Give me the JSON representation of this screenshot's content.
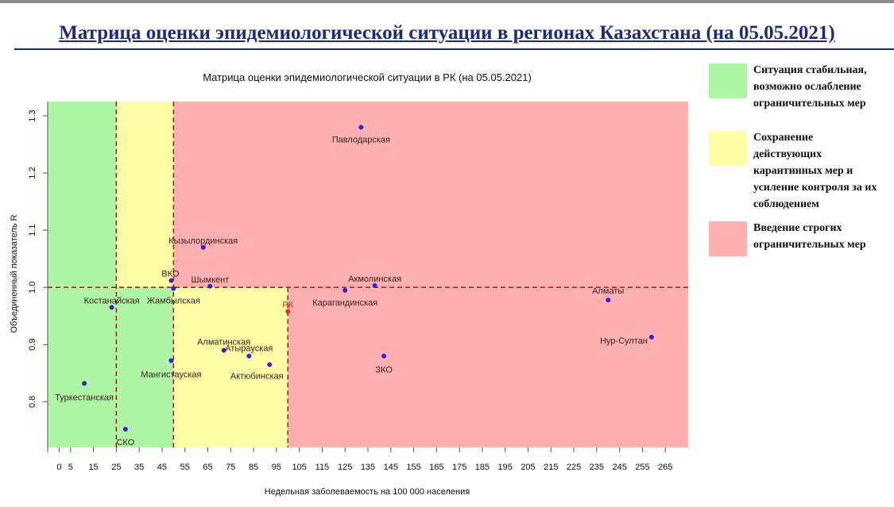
{
  "slide": {
    "title": "Матрица оценки эпидемиологической ситуации в регионах Казахстана (на 05.05.2021)"
  },
  "legend": {
    "items": [
      {
        "color": "#aef5a6",
        "text": "Ситуация стабильная,\nвозможно ослабление\nограничительных мер"
      },
      {
        "color": "#ffffa8",
        "text": "Сохранение\nдействующих\nкарантинных мер и\nусиление контроля за их\nсоблюдением"
      },
      {
        "color": "#ffb0b0",
        "text": "Введение строгих\nограничительных мер"
      }
    ]
  },
  "chart_data": {
    "type": "scatter",
    "title": "Матрица оценки эпидемиологической ситуации в РК (на 05.05.2021)",
    "xlabel": "Недельная заболеваемость на 100 000 населения",
    "ylabel": "Объединенный показатель R",
    "xlim": [
      -5,
      275
    ],
    "ylim": [
      0.72,
      1.325
    ],
    "x_ticks": [
      0,
      5,
      15,
      25,
      35,
      45,
      55,
      65,
      75,
      85,
      95,
      105,
      115,
      125,
      135,
      145,
      155,
      165,
      175,
      185,
      195,
      205,
      215,
      225,
      235,
      245,
      255,
      265
    ],
    "y_ticks": [
      0.8,
      0.9,
      1.0,
      1.1,
      1.2,
      1.3
    ],
    "zones": [
      {
        "x": [
          -5,
          50
        ],
        "y": [
          0.72,
          1.0
        ],
        "color": "#aef5a6"
      },
      {
        "x": [
          -5,
          25
        ],
        "y": [
          1.0,
          1.325
        ],
        "color": "#aef5a6"
      },
      {
        "x": [
          25,
          50
        ],
        "y": [
          1.0,
          1.325
        ],
        "color": "#ffffa8"
      },
      {
        "x": [
          50,
          100
        ],
        "y": [
          0.72,
          1.0
        ],
        "color": "#ffffa8"
      },
      {
        "x": [
          50,
          275
        ],
        "y": [
          1.0,
          1.325
        ],
        "color": "#ffb0b0"
      },
      {
        "x": [
          100,
          275
        ],
        "y": [
          0.72,
          1.0
        ],
        "color": "#ffb0b0"
      }
    ],
    "reference_lines": {
      "vertical": [
        25,
        50,
        100
      ],
      "horizontal": [
        1.0
      ],
      "color": "#b22222"
    },
    "point_color": "#3b1fcf",
    "points": [
      {
        "label": "Павлодарская",
        "x": 132,
        "y": 1.28
      },
      {
        "label": "Кызылординская",
        "x": 63,
        "y": 1.07
      },
      {
        "label": "ВКО",
        "x": 49,
        "y": 1.012
      },
      {
        "label": "Шымкент",
        "x": 66,
        "y": 1.002
      },
      {
        "label": "Акмолинская",
        "x": 138,
        "y": 1.003
      },
      {
        "label": "Жамбылская",
        "x": 50,
        "y": 0.998
      },
      {
        "label": "Карагандинская",
        "x": 125,
        "y": 0.995
      },
      {
        "label": "Алматы",
        "x": 240,
        "y": 0.978
      },
      {
        "label": "Костанайская",
        "x": 23,
        "y": 0.965
      },
      {
        "label": "РК",
        "x": 100,
        "y": 0.958
      },
      {
        "label": "Нур-Султан",
        "x": 259,
        "y": 0.913
      },
      {
        "label": "Алматинская",
        "x": 72,
        "y": 0.89
      },
      {
        "label": "Атырауская",
        "x": 83,
        "y": 0.88
      },
      {
        "label": "ЗКО",
        "x": 142,
        "y": 0.88
      },
      {
        "label": "Мангистауская",
        "x": 49,
        "y": 0.872
      },
      {
        "label": "Актюбинская",
        "x": 92,
        "y": 0.865
      },
      {
        "label": "Туркестанская",
        "x": 11,
        "y": 0.832
      },
      {
        "label": "СКО",
        "x": 29,
        "y": 0.752
      }
    ]
  }
}
